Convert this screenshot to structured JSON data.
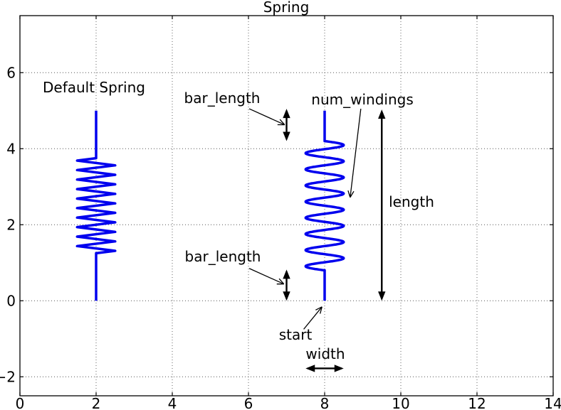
{
  "labels": {
    "title": "Spring",
    "default_spring": "Default Spring",
    "bar_length_top": "bar_length",
    "num_windings": "num_windings",
    "length": "length",
    "bar_length_bottom": "bar_length",
    "start": "start",
    "width": "width"
  },
  "colors": {
    "spring": "#0000ee",
    "annotation": "#000000",
    "grid": "#555555",
    "frame": "#000000",
    "background": "#ffffff"
  },
  "chart_data": {
    "type": "line",
    "title": "Spring",
    "xlabel": "",
    "ylabel": "",
    "xlim": [
      0,
      14
    ],
    "ylim": [
      -2.5,
      7.5
    ],
    "x_ticks": [
      0,
      2,
      4,
      6,
      8,
      10,
      12,
      14
    ],
    "y_ticks": [
      -2,
      0,
      2,
      4,
      6
    ],
    "grid": "dotted",
    "legend": "none",
    "series": [
      {
        "name": "default_spring",
        "style": "zigzag",
        "color": "#0000ee",
        "linewidth": 3.5,
        "x_center": 2,
        "start_y": 0,
        "length": 5,
        "bar_length": 1.25,
        "width": 1,
        "num_windings": 10
      },
      {
        "name": "custom_spring",
        "style": "sine",
        "color": "#0000ee",
        "linewidth": 3.5,
        "x_center": 8,
        "start_y": 0,
        "length": 5,
        "bar_length": 0.8,
        "width": 1,
        "num_windings": 8
      }
    ],
    "double_arrows": [
      {
        "id": "bar-length-top-extent",
        "x1": 7.0,
        "y1": 4.2,
        "x2": 7.0,
        "y2": 5.05
      },
      {
        "id": "bar-length-bottom-extent",
        "x1": 7.0,
        "y1": 0.0,
        "x2": 7.0,
        "y2": 0.82
      },
      {
        "id": "length-extent",
        "x1": 9.5,
        "y1": 0.0,
        "x2": 9.5,
        "y2": 5.03
      },
      {
        "id": "width-extent",
        "x1": 7.5,
        "y1": -1.78,
        "x2": 8.5,
        "y2": -1.78
      }
    ],
    "thin_arrows": [
      {
        "id": "bar-length-top-arrow",
        "from": [
          6.02,
          5.05
        ],
        "to": [
          6.95,
          4.63
        ]
      },
      {
        "id": "bar-length-bottom-arrow",
        "from": [
          6.02,
          0.85
        ],
        "to": [
          6.93,
          0.44
        ]
      },
      {
        "id": "num-windings-arrow",
        "from": [
          8.95,
          5.05
        ],
        "to": [
          8.67,
          2.72
        ]
      },
      {
        "id": "start-arrow",
        "from": [
          7.45,
          -0.75
        ],
        "to": [
          7.93,
          -0.16
        ]
      }
    ],
    "annotation_texts": [
      {
        "id": "default-spring-label",
        "text": "Default Spring",
        "x": 1.95,
        "y": 5.61
      },
      {
        "id": "bar-length-top-label",
        "text": "bar_length",
        "x": 5.31,
        "y": 5.3
      },
      {
        "id": "num-windings-label",
        "text": "num_windings",
        "x": 8.99,
        "y": 5.27
      },
      {
        "id": "length-label",
        "text": "length",
        "x": 10.28,
        "y": 2.62
      },
      {
        "id": "bar-length-bottom-label",
        "text": "bar_length",
        "x": 5.33,
        "y": 1.13
      },
      {
        "id": "start-label",
        "text": "start",
        "x": 7.23,
        "y": -0.92
      },
      {
        "id": "width-label",
        "text": "width",
        "x": 8.02,
        "y": -1.42
      }
    ]
  }
}
